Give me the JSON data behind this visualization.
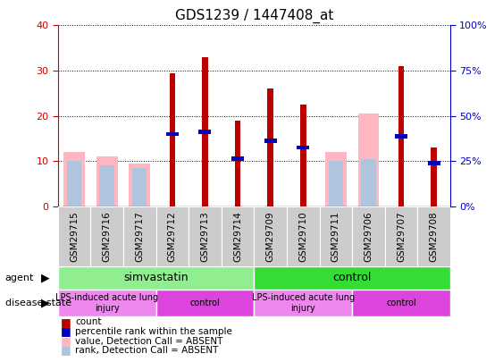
{
  "title": "GDS1239 / 1447408_at",
  "samples": [
    "GSM29715",
    "GSM29716",
    "GSM29717",
    "GSM29712",
    "GSM29713",
    "GSM29714",
    "GSM29709",
    "GSM29710",
    "GSM29711",
    "GSM29706",
    "GSM29707",
    "GSM29708"
  ],
  "red_bars": [
    0,
    0,
    0,
    29.5,
    33,
    19,
    26,
    22.5,
    0,
    0,
    31,
    13
  ],
  "blue_markers": [
    0,
    0,
    0,
    16,
    16.5,
    10.5,
    14.5,
    13,
    0,
    0,
    15.5,
    9.5
  ],
  "pink_bars": [
    12,
    11,
    9.5,
    0,
    0,
    0,
    0,
    0,
    12,
    20.5,
    0,
    0
  ],
  "lightblue_bars": [
    10,
    9,
    8.5,
    0,
    0,
    0,
    0,
    0,
    10,
    10.5,
    0,
    0
  ],
  "ylim": [
    0,
    40
  ],
  "y2lim": [
    0,
    100
  ],
  "yticks": [
    0,
    10,
    20,
    30,
    40
  ],
  "y2ticks": [
    0,
    25,
    50,
    75,
    100
  ],
  "agent_groups": [
    {
      "label": "simvastatin",
      "start": 0,
      "end": 6,
      "color": "#90EE90"
    },
    {
      "label": "control",
      "start": 6,
      "end": 12,
      "color": "#33DD33"
    }
  ],
  "disease_groups": [
    {
      "label": "LPS-induced acute lung\ninjury",
      "start": 0,
      "end": 3,
      "color": "#EE88EE"
    },
    {
      "label": "control",
      "start": 3,
      "end": 6,
      "color": "#DD44DD"
    },
    {
      "label": "LPS-induced acute lung\ninjury",
      "start": 6,
      "end": 9,
      "color": "#EE88EE"
    },
    {
      "label": "control",
      "start": 9,
      "end": 12,
      "color": "#DD44DD"
    }
  ],
  "red_color": "#BB0000",
  "blue_color": "#0000BB",
  "pink_color": "#FFB6C1",
  "lightblue_color": "#B0C4DE",
  "left_tick_color": "#CC0000",
  "right_tick_color": "#0000CC"
}
